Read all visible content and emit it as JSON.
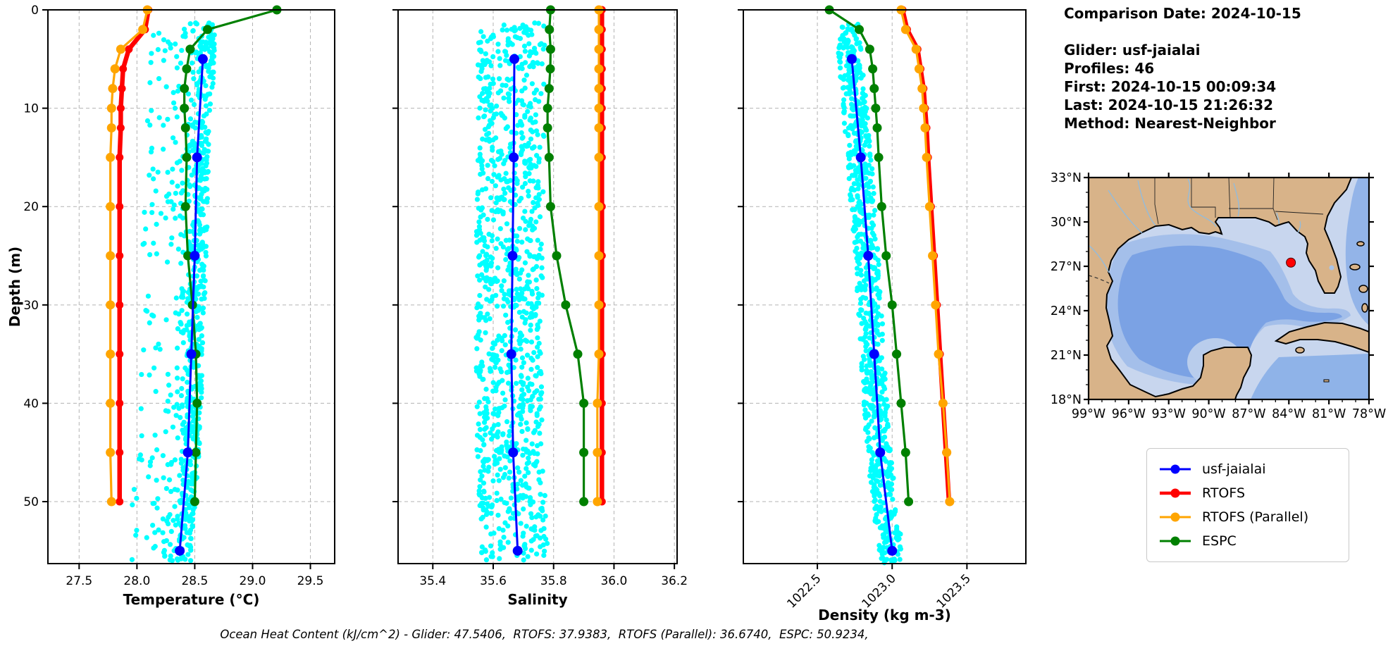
{
  "info_panel": {
    "title": "Comparison Date: 2024-10-15",
    "lines": [
      "Glider: usf-jaialai",
      "Profiles: 46",
      "First: 2024-10-15 00:09:34",
      "Last: 2024-10-15 21:26:32",
      "Method: Nearest-Neighbor"
    ]
  },
  "caption": "Ocean Heat Content (kJ/cm^2) - Glider: 47.5406,  RTOFS: 37.9383,  RTOFS (Parallel): 36.6740,  ESPC: 50.9234,",
  "legend": {
    "items": [
      {
        "label": "usf-jaialai",
        "color": "#0000ff"
      },
      {
        "label": "RTOFS",
        "color": "#ff0000"
      },
      {
        "label": "RTOFS (Parallel)",
        "color": "#ffa500"
      },
      {
        "label": "ESPC",
        "color": "#008000"
      }
    ]
  },
  "colors": {
    "glider": "#0000ff",
    "rtofs": "#ff0000",
    "rtofs_parallel": "#ffa500",
    "espc": "#008000",
    "glider_scatter": "#00ffff",
    "grid": "#b3b3b3",
    "map_land": "#d8b389",
    "map_shelf": "#c8d6ee",
    "map_mid": "#a4bfea",
    "map_deep": "#7ba2e4",
    "map_marker": "#ff0000"
  },
  "chart_data": [
    {
      "type": "line",
      "id": "temperature",
      "xlabel": "Temperature (°C)",
      "ylabel": "Depth (m)",
      "xlim": [
        27.23,
        29.71
      ],
      "xticks": [
        27.5,
        28.0,
        28.5,
        29.0,
        29.5
      ],
      "ylim": [
        0,
        56.3
      ],
      "yticks": [
        0,
        10,
        20,
        30,
        40,
        50
      ],
      "tick_rotation": 0,
      "series": [
        {
          "name": "RTOFS",
          "color": "#ff0000",
          "lw": 6.5,
          "ms": 5.5,
          "depths": [
            0,
            2,
            4,
            6,
            8,
            10,
            12,
            15,
            20,
            25,
            30,
            35,
            40,
            45,
            50
          ],
          "values": [
            28.1,
            28.07,
            27.93,
            27.88,
            27.87,
            27.86,
            27.86,
            27.85,
            27.85,
            27.85,
            27.85,
            27.85,
            27.85,
            27.85,
            27.85
          ]
        },
        {
          "name": "RTOFS (Parallel)",
          "color": "#ffa500",
          "lw": 3.2,
          "ms": 6.5,
          "depths": [
            0,
            2,
            4,
            6,
            8,
            10,
            12,
            15,
            20,
            25,
            30,
            35,
            40,
            45,
            50
          ],
          "values": [
            28.09,
            28.05,
            27.86,
            27.81,
            27.79,
            27.78,
            27.78,
            27.77,
            27.77,
            27.77,
            27.77,
            27.77,
            27.77,
            27.77,
            27.78
          ]
        },
        {
          "name": "ESPC",
          "color": "#008000",
          "lw": 3.2,
          "ms": 6.5,
          "depths": [
            0,
            2,
            4,
            6,
            8,
            10,
            12,
            15,
            20,
            25,
            30,
            35,
            40,
            45,
            50
          ],
          "values": [
            29.21,
            28.61,
            28.46,
            28.43,
            28.41,
            28.41,
            28.42,
            28.43,
            28.42,
            28.44,
            28.48,
            28.51,
            28.52,
            28.51,
            28.5
          ]
        },
        {
          "name": "usf-jaialai",
          "color": "#0000ff",
          "lw": 3,
          "ms": 7,
          "depths": [
            5,
            15,
            25,
            35,
            45,
            55
          ],
          "values": [
            28.57,
            28.52,
            28.5,
            28.47,
            28.44,
            28.37
          ]
        }
      ],
      "scatter": {
        "name": "glider-observations",
        "color": "#00ffff",
        "n": 820,
        "seed": 11,
        "follow": "usf-jaialai",
        "jitter": [
          -0.02,
          0.1
        ],
        "tail": [
          -0.45,
          -0.02
        ],
        "tail_frac": 0.45,
        "depth_range": [
          1.3,
          56
        ]
      }
    },
    {
      "type": "line",
      "id": "salinity",
      "xlabel": "Salinity",
      "ylabel": "",
      "xlim": [
        35.285,
        36.209
      ],
      "xticks": [
        35.4,
        35.6,
        35.8,
        36.0,
        36.2
      ],
      "ylim": [
        0,
        56.3
      ],
      "yticks": [
        0,
        10,
        20,
        30,
        40,
        50
      ],
      "tick_rotation": 0,
      "series": [
        {
          "name": "RTOFS",
          "color": "#ff0000",
          "lw": 6.5,
          "ms": 5.5,
          "depths": [
            0,
            2,
            4,
            6,
            8,
            10,
            12,
            15,
            20,
            25,
            30,
            35,
            40,
            45,
            50
          ],
          "values": [
            35.96,
            35.96,
            35.96,
            35.96,
            35.96,
            35.96,
            35.96,
            35.96,
            35.96,
            35.96,
            35.96,
            35.96,
            35.96,
            35.96,
            35.96
          ]
        },
        {
          "name": "RTOFS (Parallel)",
          "color": "#ffa500",
          "lw": 3.2,
          "ms": 6.5,
          "depths": [
            0,
            2,
            4,
            6,
            8,
            10,
            12,
            15,
            20,
            25,
            30,
            35,
            40,
            45,
            50
          ],
          "values": [
            35.95,
            35.95,
            35.95,
            35.95,
            35.95,
            35.95,
            35.95,
            35.95,
            35.95,
            35.95,
            35.95,
            35.95,
            35.945,
            35.945,
            35.945
          ]
        },
        {
          "name": "ESPC",
          "color": "#008000",
          "lw": 3.2,
          "ms": 6.5,
          "depths": [
            0,
            2,
            4,
            6,
            8,
            10,
            12,
            15,
            20,
            25,
            30,
            35,
            40,
            45,
            50
          ],
          "values": [
            35.79,
            35.786,
            35.79,
            35.789,
            35.785,
            35.78,
            35.78,
            35.785,
            35.79,
            35.81,
            35.84,
            35.88,
            35.9,
            35.9,
            35.9
          ]
        },
        {
          "name": "usf-jaialai",
          "color": "#0000ff",
          "lw": 3,
          "ms": 7,
          "depths": [
            5,
            15,
            25,
            35,
            45,
            55
          ],
          "values": [
            35.67,
            35.668,
            35.664,
            35.66,
            35.666,
            35.681
          ]
        }
      ],
      "scatter": {
        "name": "glider-observations",
        "color": "#00ffff",
        "n": 1000,
        "seed": 23,
        "follow": "usf-jaialai",
        "jitter": [
          -0.12,
          0.1
        ],
        "tail": null,
        "tail_frac": 0,
        "depth_range": [
          1.3,
          56
        ]
      }
    },
    {
      "type": "line",
      "id": "density",
      "xlabel": "Density (kg m-3)",
      "ylabel": "",
      "xlim": [
        1022.005,
        1023.894
      ],
      "xticks": [
        1022.5,
        1023.0,
        1023.5
      ],
      "ylim": [
        0,
        56.3
      ],
      "yticks": [
        0,
        10,
        20,
        30,
        40,
        50
      ],
      "tick_rotation": 45,
      "series": [
        {
          "name": "RTOFS",
          "color": "#ff0000",
          "lw": 6.5,
          "ms": 5.5,
          "depths": [
            0,
            2,
            4,
            6,
            8,
            10,
            12,
            15,
            20,
            25,
            30,
            35,
            40,
            45,
            50
          ],
          "values": [
            1023.07,
            1023.1,
            1023.17,
            1023.19,
            1023.21,
            1023.22,
            1023.23,
            1023.24,
            1023.26,
            1023.28,
            1023.3,
            1023.32,
            1023.34,
            1023.36,
            1023.38
          ]
        },
        {
          "name": "RTOFS (Parallel)",
          "color": "#ffa500",
          "lw": 3.2,
          "ms": 6.5,
          "depths": [
            0,
            2,
            4,
            6,
            8,
            10,
            12,
            15,
            20,
            25,
            30,
            35,
            40,
            45,
            50
          ],
          "values": [
            1023.06,
            1023.09,
            1023.16,
            1023.18,
            1023.2,
            1023.21,
            1023.22,
            1023.23,
            1023.25,
            1023.27,
            1023.29,
            1023.31,
            1023.34,
            1023.365,
            1023.385
          ]
        },
        {
          "name": "ESPC",
          "color": "#008000",
          "lw": 3.2,
          "ms": 6.5,
          "depths": [
            0,
            2,
            4,
            6,
            8,
            10,
            12,
            15,
            20,
            25,
            30,
            35,
            40,
            45,
            50
          ],
          "values": [
            1022.58,
            1022.78,
            1022.85,
            1022.87,
            1022.88,
            1022.89,
            1022.9,
            1022.91,
            1022.93,
            1022.96,
            1023.0,
            1023.03,
            1023.06,
            1023.09,
            1023.11
          ]
        },
        {
          "name": "usf-jaialai",
          "color": "#0000ff",
          "lw": 3,
          "ms": 7,
          "depths": [
            5,
            15,
            25,
            35,
            45,
            55
          ],
          "values": [
            1022.73,
            1022.79,
            1022.84,
            1022.88,
            1022.92,
            1023.0
          ]
        }
      ],
      "scatter": {
        "name": "glider-observations",
        "color": "#00ffff",
        "n": 820,
        "seed": 37,
        "follow": "usf-jaialai",
        "jitter": [
          -0.09,
          0.07
        ],
        "tail": null,
        "tail_frac": 0,
        "depth_range": [
          1.3,
          56.3
        ]
      }
    },
    {
      "type": "map",
      "id": "location-map",
      "lon_tick_labels": [
        "99°W",
        "96°W",
        "93°W",
        "90°W",
        "87°W",
        "84°W",
        "81°W",
        "78°W"
      ],
      "lat_tick_labels": [
        "33°N",
        "30°N",
        "27°N",
        "24°N",
        "21°N",
        "18°N"
      ],
      "lon_range": [
        -99,
        -78
      ],
      "lat_range": [
        18,
        33
      ],
      "marker": {
        "lon": -83.85,
        "lat": 27.25,
        "color": "#ff0000"
      }
    }
  ]
}
